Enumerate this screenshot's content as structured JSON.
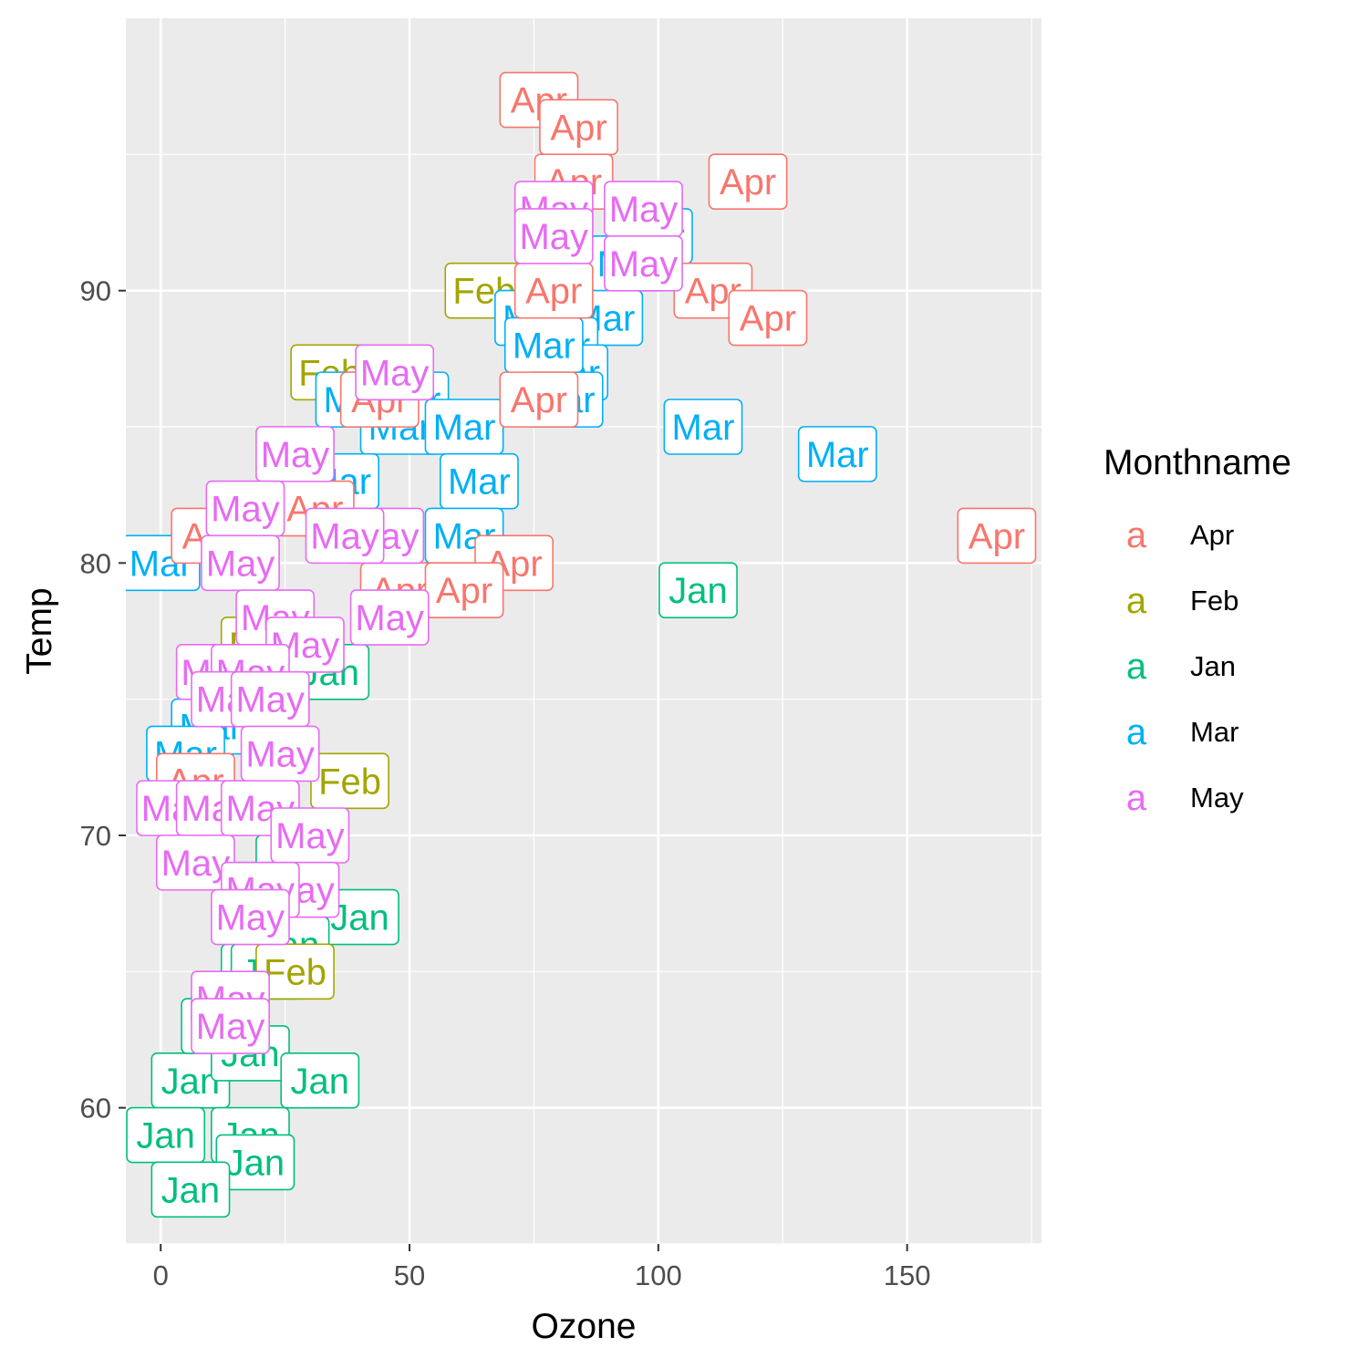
{
  "chart_data": {
    "type": "scatter",
    "geom": "label",
    "xlabel": "Ozone",
    "ylabel": "Temp",
    "xlim": [
      -7,
      177
    ],
    "ylim": [
      55,
      100
    ],
    "x_ticks": [
      0,
      50,
      100,
      150
    ],
    "y_ticks": [
      60,
      70,
      80,
      90
    ],
    "grid": true,
    "legend": {
      "title": "Monthname",
      "position": "right",
      "key_glyph": "a",
      "entries": [
        {
          "label": "Apr",
          "color": "#F8766D"
        },
        {
          "label": "Feb",
          "color": "#A3A500"
        },
        {
          "label": "Jan",
          "color": "#00BF7D"
        },
        {
          "label": "Mar",
          "color": "#00B0F6"
        },
        {
          "label": "May",
          "color": "#E76BF3"
        }
      ]
    },
    "series": [
      {
        "name": "Jan",
        "points": [
          {
            "x": 40,
            "y": 67
          },
          {
            "x": 20,
            "y": 65
          },
          {
            "x": 26,
            "y": 66
          },
          {
            "x": 6,
            "y": 61
          },
          {
            "x": 12,
            "y": 63
          },
          {
            "x": 18,
            "y": 62
          },
          {
            "x": 27,
            "y": 69
          },
          {
            "x": 19,
            "y": 68
          },
          {
            "x": 22,
            "y": 65
          },
          {
            "x": 32,
            "y": 61
          },
          {
            "x": 1,
            "y": 59
          },
          {
            "x": 18,
            "y": 59
          },
          {
            "x": 19,
            "y": 58
          },
          {
            "x": 6,
            "y": 57
          },
          {
            "x": 34,
            "y": 76
          },
          {
            "x": 108,
            "y": 79
          }
        ]
      },
      {
        "name": "Feb",
        "points": [
          {
            "x": 65,
            "y": 90
          },
          {
            "x": 34,
            "y": 87
          },
          {
            "x": 20,
            "y": 77
          },
          {
            "x": 38,
            "y": 72
          },
          {
            "x": 27,
            "y": 65
          }
        ]
      },
      {
        "name": "Mar",
        "points": [
          {
            "x": 99,
            "y": 92
          },
          {
            "x": 94,
            "y": 91
          },
          {
            "x": 89,
            "y": 89
          },
          {
            "x": 75,
            "y": 89
          },
          {
            "x": 80,
            "y": 88
          },
          {
            "x": 82,
            "y": 87
          },
          {
            "x": 77,
            "y": 88
          },
          {
            "x": 81,
            "y": 86
          },
          {
            "x": 50,
            "y": 86
          },
          {
            "x": 39,
            "y": 86
          },
          {
            "x": 48,
            "y": 85
          },
          {
            "x": 61,
            "y": 85
          },
          {
            "x": 109,
            "y": 85
          },
          {
            "x": 136,
            "y": 84
          },
          {
            "x": 64,
            "y": 83
          },
          {
            "x": 36,
            "y": 83
          },
          {
            "x": 61,
            "y": 81
          },
          {
            "x": 0,
            "y": 80
          },
          {
            "x": 10,
            "y": 74
          },
          {
            "x": 5,
            "y": 73
          }
        ]
      },
      {
        "name": "Apr",
        "points": [
          {
            "x": 76,
            "y": 97
          },
          {
            "x": 84,
            "y": 96
          },
          {
            "x": 83,
            "y": 94
          },
          {
            "x": 118,
            "y": 94
          },
          {
            "x": 79,
            "y": 90
          },
          {
            "x": 111,
            "y": 90
          },
          {
            "x": 122,
            "y": 89
          },
          {
            "x": 44,
            "y": 86
          },
          {
            "x": 76,
            "y": 86
          },
          {
            "x": 31,
            "y": 82
          },
          {
            "x": 10,
            "y": 81
          },
          {
            "x": 168,
            "y": 81
          },
          {
            "x": 71,
            "y": 80
          },
          {
            "x": 48,
            "y": 79
          },
          {
            "x": 61,
            "y": 79
          },
          {
            "x": 7,
            "y": 72
          }
        ]
      },
      {
        "name": "May",
        "points": [
          {
            "x": 79,
            "y": 93
          },
          {
            "x": 97,
            "y": 93
          },
          {
            "x": 79,
            "y": 92
          },
          {
            "x": 97,
            "y": 91
          },
          {
            "x": 47,
            "y": 87
          },
          {
            "x": 27,
            "y": 84
          },
          {
            "x": 17,
            "y": 82
          },
          {
            "x": 45,
            "y": 81
          },
          {
            "x": 37,
            "y": 81
          },
          {
            "x": 16,
            "y": 80
          },
          {
            "x": 23,
            "y": 78
          },
          {
            "x": 29,
            "y": 77
          },
          {
            "x": 46,
            "y": 78
          },
          {
            "x": 11,
            "y": 76
          },
          {
            "x": 18,
            "y": 76
          },
          {
            "x": 14,
            "y": 75
          },
          {
            "x": 22,
            "y": 75
          },
          {
            "x": 24,
            "y": 73
          },
          {
            "x": 3,
            "y": 71
          },
          {
            "x": 11,
            "y": 71
          },
          {
            "x": 20,
            "y": 71
          },
          {
            "x": 30,
            "y": 70
          },
          {
            "x": 7,
            "y": 69
          },
          {
            "x": 28,
            "y": 68
          },
          {
            "x": 20,
            "y": 68
          },
          {
            "x": 18,
            "y": 67
          },
          {
            "x": 14,
            "y": 64
          },
          {
            "x": 14,
            "y": 63
          }
        ]
      }
    ]
  }
}
